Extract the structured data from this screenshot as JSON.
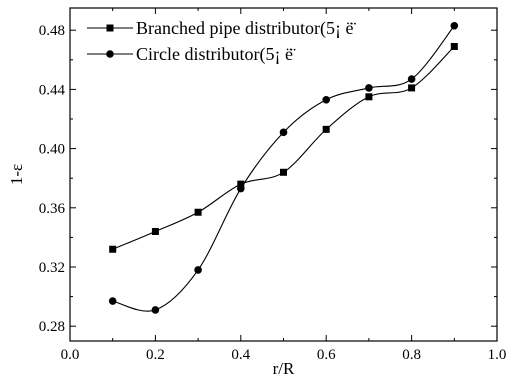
{
  "chart_data": {
    "type": "line",
    "title": "",
    "xlabel": "r/R",
    "ylabel": "1-ε",
    "xlim": [
      0.0,
      1.0
    ],
    "ylim": [
      0.27,
      0.495
    ],
    "xticks": [
      "0.0",
      "0.2",
      "0.4",
      "0.6",
      "0.8",
      "1.0"
    ],
    "yticks": [
      "0.28",
      "0.32",
      "0.36",
      "0.40",
      "0.44",
      "0.48"
    ],
    "x": [
      0.1,
      0.2,
      0.3,
      0.4,
      0.5,
      0.6,
      0.7,
      0.8,
      0.9
    ],
    "series": [
      {
        "name": "Branched pipe distributor(5¡  ë̈",
        "marker": "square",
        "values": [
          0.332,
          0.344,
          0.357,
          0.376,
          0.384,
          0.413,
          0.435,
          0.441,
          0.469
        ]
      },
      {
        "name": "Circle distributor(5¡  ë̈",
        "marker": "circle",
        "values": [
          0.297,
          0.291,
          0.318,
          0.373,
          0.411,
          0.433,
          0.441,
          0.447,
          0.483
        ]
      }
    ],
    "grid": false,
    "legend": "top-left",
    "colors": {
      "line": "#000000",
      "marker": "#000000",
      "axis": "#000000",
      "background": "#ffffff"
    }
  }
}
